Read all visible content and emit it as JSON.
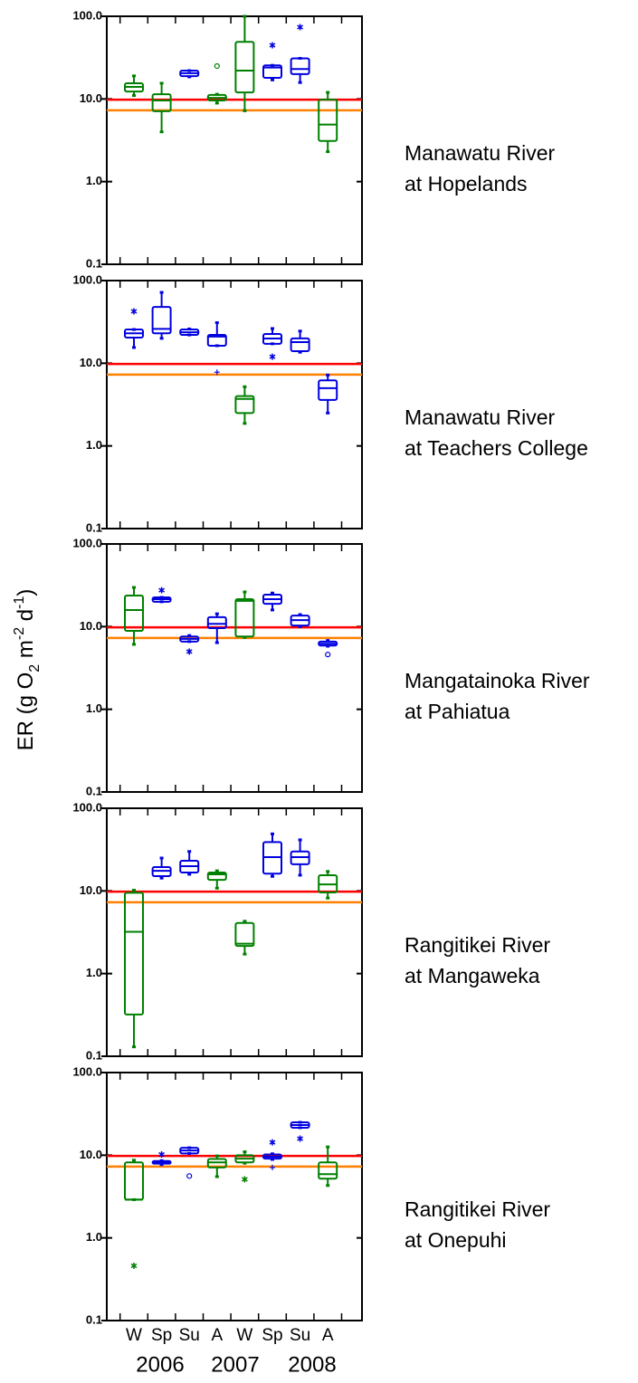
{
  "ylabel": [
    "ER  (g O",
    "2",
    " m",
    "-2",
    " d",
    "-1",
    ")"
  ],
  "chart_data": [
    {
      "type": "box",
      "title": [
        "Manawatu River",
        "at Hopelands"
      ],
      "log_scale": true,
      "ylim": [
        0.1,
        100
      ],
      "yticks": [
        {
          "value": 100,
          "label": "100.0"
        },
        {
          "value": 10,
          "label": "10.0"
        },
        {
          "value": 1,
          "label": "1.0"
        },
        0.1
      ],
      "reference_lines": [
        {
          "value": 9.8,
          "color": "#ff0000"
        },
        {
          "value": 7.3,
          "color": "#ff8000"
        }
      ],
      "boxes": [
        {
          "min": 11,
          "q1": 12.3,
          "median": 14,
          "q3": 15.5,
          "max": 19,
          "color": "#008000",
          "outliers": []
        },
        {
          "min": 4,
          "q1": 7.1,
          "median": 9.6,
          "q3": 11.4,
          "max": 15.5,
          "color": "#008000",
          "outliers": []
        },
        {
          "min": 18.5,
          "q1": 18.9,
          "median": 20.5,
          "q3": 22,
          "max": 22,
          "color": "#0000e0",
          "outliers": []
        },
        {
          "min": 8.9,
          "q1": 9.6,
          "median": 10.3,
          "q3": 11.2,
          "max": 11.4,
          "color": "#008000",
          "outliers": [
            {
              "value": 25,
              "marker": "circle"
            }
          ]
        },
        {
          "min": 7.2,
          "q1": 12,
          "median": 22,
          "q3": 49,
          "max": 100,
          "color": "#008000",
          "outliers": []
        },
        {
          "min": 17,
          "q1": 18,
          "median": 24,
          "q3": 25.5,
          "max": 25.5,
          "color": "#0000e0",
          "outliers": [
            {
              "value": 44.7,
              "marker": "star"
            }
          ]
        },
        {
          "min": 15.8,
          "q1": 20,
          "median": 23,
          "q3": 31,
          "max": 31,
          "color": "#0000e0",
          "outliers": [
            {
              "value": 74,
              "marker": "star"
            }
          ]
        },
        {
          "min": 2.3,
          "q1": 3.1,
          "median": 4.9,
          "q3": 9.8,
          "max": 12,
          "color": "#008000",
          "outliers": []
        }
      ]
    },
    {
      "type": "box",
      "title": [
        "Manawatu River",
        "at Teachers College"
      ],
      "log_scale": true,
      "ylim": [
        0.1,
        100
      ],
      "yticks": [
        {
          "value": 100,
          "label": "100.0"
        },
        {
          "value": 10,
          "label": "10.0"
        },
        {
          "value": 1,
          "label": "1.0"
        },
        0.1
      ],
      "reference_lines": [
        {
          "value": 9.8,
          "color": "#ff0000"
        },
        {
          "value": 7.3,
          "color": "#ff8000"
        }
      ],
      "boxes": [
        {
          "min": 15.5,
          "q1": 20.4,
          "median": 23,
          "q3": 25.6,
          "max": 25.6,
          "color": "#0000e0",
          "outliers": [
            {
              "value": 42.5,
              "marker": "star"
            }
          ]
        },
        {
          "min": 20,
          "q1": 23,
          "median": 26,
          "q3": 48,
          "max": 72,
          "color": "#0000e0",
          "outliers": []
        },
        {
          "min": 22,
          "q1": 22,
          "median": 23.7,
          "q3": 25.6,
          "max": 26,
          "color": "#0000e0",
          "outliers": []
        },
        {
          "min": 16.3,
          "q1": 16.3,
          "median": 21,
          "q3": 22,
          "max": 31,
          "color": "#0000e0",
          "outliers": [
            {
              "value": 7.8,
              "marker": "plus"
            }
          ]
        },
        {
          "min": 1.87,
          "q1": 2.5,
          "median": 3.7,
          "q3": 4,
          "max": 5.2,
          "color": "#008000",
          "outliers": []
        },
        {
          "min": 17.2,
          "q1": 17.2,
          "median": 19.9,
          "q3": 22.6,
          "max": 26.3,
          "color": "#0000e0",
          "outliers": [
            {
              "value": 12,
              "marker": "star"
            }
          ]
        },
        {
          "min": 13.6,
          "q1": 14,
          "median": 18,
          "q3": 20,
          "max": 24.5,
          "color": "#0000e0",
          "outliers": []
        },
        {
          "min": 2.5,
          "q1": 3.6,
          "median": 5,
          "q3": 6.2,
          "max": 7.2,
          "color": "#0000e0",
          "outliers": []
        }
      ]
    },
    {
      "type": "box",
      "title": [
        "Mangatainoka River",
        "at Pahiatua"
      ],
      "log_scale": true,
      "ylim": [
        0.1,
        100
      ],
      "yticks": [
        {
          "value": 100,
          "label": "100.0"
        },
        {
          "value": 10,
          "label": "10.0"
        },
        {
          "value": 1,
          "label": "1.0"
        },
        0.1
      ],
      "reference_lines": [
        {
          "value": 9.8,
          "color": "#ff0000"
        },
        {
          "value": 7.3,
          "color": "#ff8000"
        }
      ],
      "boxes": [
        {
          "min": 6.1,
          "q1": 8.9,
          "median": 15.9,
          "q3": 23.8,
          "max": 29.8,
          "color": "#008000",
          "outliers": []
        },
        {
          "min": 20,
          "q1": 20,
          "median": 21.5,
          "q3": 22.6,
          "max": 22.6,
          "color": "#0000e0",
          "outliers": [
            {
              "value": 27.6,
              "marker": "star"
            }
          ]
        },
        {
          "min": 6.6,
          "q1": 6.6,
          "median": 7.1,
          "q3": 7.6,
          "max": 7.8,
          "color": "#0000e0",
          "outliers": [
            {
              "value": 5,
              "marker": "star"
            }
          ]
        },
        {
          "min": 6.4,
          "q1": 9.6,
          "median": 10.8,
          "q3": 13,
          "max": 14.3,
          "color": "#0000e0",
          "outliers": []
        },
        {
          "min": 7.4,
          "q1": 7.6,
          "median": 20.5,
          "q3": 21.5,
          "max": 26.3,
          "color": "#008000",
          "outliers": []
        },
        {
          "min": 15.9,
          "q1": 18.9,
          "median": 21.5,
          "q3": 24.4,
          "max": 25.5,
          "color": "#0000e0",
          "outliers": []
        },
        {
          "min": 10,
          "q1": 10.3,
          "median": 12,
          "q3": 13.6,
          "max": 14,
          "color": "#0000e0",
          "outliers": []
        },
        {
          "min": 5.8,
          "q1": 5.9,
          "median": 6.2,
          "q3": 6.6,
          "max": 6.8,
          "color": "#0000e0",
          "outliers": [
            {
              "value": 4.6,
              "marker": "circle"
            }
          ]
        }
      ]
    },
    {
      "type": "box",
      "title": [
        "Rangitikei River",
        "at Mangaweka"
      ],
      "log_scale": true,
      "ylim": [
        0.1,
        100
      ],
      "yticks": [
        {
          "value": 100,
          "label": "100.0"
        },
        {
          "value": 10,
          "label": "10.0"
        },
        {
          "value": 1,
          "label": "1.0"
        },
        0.1
      ],
      "reference_lines": [
        {
          "value": 9.8,
          "color": "#ff0000"
        },
        {
          "value": 7.3,
          "color": "#ff8000"
        }
      ],
      "boxes": [
        {
          "min": 0.13,
          "q1": 0.32,
          "median": 3.2,
          "q3": 9.5,
          "max": 10.2,
          "color": "#008000",
          "outliers": []
        },
        {
          "min": 14.3,
          "q1": 15.1,
          "median": 17.5,
          "q3": 19.4,
          "max": 25,
          "color": "#0000e0",
          "outliers": []
        },
        {
          "min": 15.9,
          "q1": 16.7,
          "median": 19.9,
          "q3": 23.2,
          "max": 30,
          "color": "#0000e0",
          "outliers": []
        },
        {
          "min": 10.8,
          "q1": 13.6,
          "median": 15.9,
          "q3": 16.7,
          "max": 17.5,
          "color": "#008000",
          "outliers": []
        },
        {
          "min": 1.72,
          "q1": 2.16,
          "median": 2.3,
          "q3": 4.1,
          "max": 4.3,
          "color": "#008000",
          "outliers": []
        },
        {
          "min": 15,
          "q1": 16.2,
          "median": 25.6,
          "q3": 39,
          "max": 49,
          "color": "#0000e0",
          "outliers": []
        },
        {
          "min": 15.5,
          "q1": 21,
          "median": 25.6,
          "q3": 30,
          "max": 41.5,
          "color": "#0000e0",
          "outliers": []
        },
        {
          "min": 8.2,
          "q1": 9.6,
          "median": 12,
          "q3": 15.5,
          "max": 17.2,
          "color": "#008000",
          "outliers": []
        }
      ]
    },
    {
      "type": "box",
      "title": [
        "Rangitikei River",
        "at Onepuhi"
      ],
      "log_scale": true,
      "ylim": [
        0.1,
        100
      ],
      "yticks": [
        {
          "value": 100,
          "label": "100.0"
        },
        {
          "value": 10,
          "label": "10.0"
        },
        {
          "value": 1,
          "label": "1.0"
        },
        0.1
      ],
      "reference_lines": [
        {
          "value": 9.8,
          "color": "#ff0000"
        },
        {
          "value": 7.3,
          "color": "#ff8000"
        }
      ],
      "categories": [
        "W",
        "Sp",
        "Su",
        "A",
        "W",
        "Sp",
        "Su",
        "A"
      ],
      "years": [
        "2006",
        "2007",
        "2008"
      ],
      "boxes": [
        {
          "min": 2.9,
          "q1": 2.9,
          "median": 2.9,
          "q3": 8.2,
          "max": 8.7,
          "color": "#008000",
          "outliers": [
            {
              "value": 0.46,
              "marker": "star"
            }
          ]
        },
        {
          "min": 7.7,
          "q1": 7.9,
          "median": 8.2,
          "q3": 8.5,
          "max": 8.6,
          "color": "#0000e0",
          "outliers": [
            {
              "value": 10.2,
              "marker": "star"
            }
          ]
        },
        {
          "min": 10.5,
          "q1": 10.5,
          "median": 11.4,
          "q3": 12.3,
          "max": 12.3,
          "color": "#0000e0",
          "outliers": [
            {
              "value": 5.6,
              "marker": "circle"
            }
          ]
        },
        {
          "min": 5.5,
          "q1": 7.1,
          "median": 8.2,
          "q3": 9,
          "max": 9.8,
          "color": "#008000",
          "outliers": []
        },
        {
          "min": 8,
          "q1": 8.2,
          "median": 9.1,
          "q3": 10,
          "max": 11,
          "color": "#008000",
          "outliers": [
            {
              "value": 5.1,
              "marker": "star"
            }
          ]
        },
        {
          "min": 8.9,
          "q1": 9.1,
          "median": 9.6,
          "q3": 10.2,
          "max": 10.4,
          "color": "#0000e0",
          "outliers": [
            {
              "value": 14.3,
              "marker": "star"
            },
            {
              "value": 7.1,
              "marker": "plus"
            }
          ]
        },
        {
          "min": 21.5,
          "q1": 21.5,
          "median": 23.2,
          "q3": 25,
          "max": 25,
          "color": "#0000e0",
          "outliers": [
            {
              "value": 15.9,
              "marker": "star"
            }
          ]
        },
        {
          "min": 4.3,
          "q1": 5.2,
          "median": 5.9,
          "q3": 8.2,
          "max": 12.6,
          "color": "#008000",
          "outliers": []
        }
      ]
    }
  ]
}
